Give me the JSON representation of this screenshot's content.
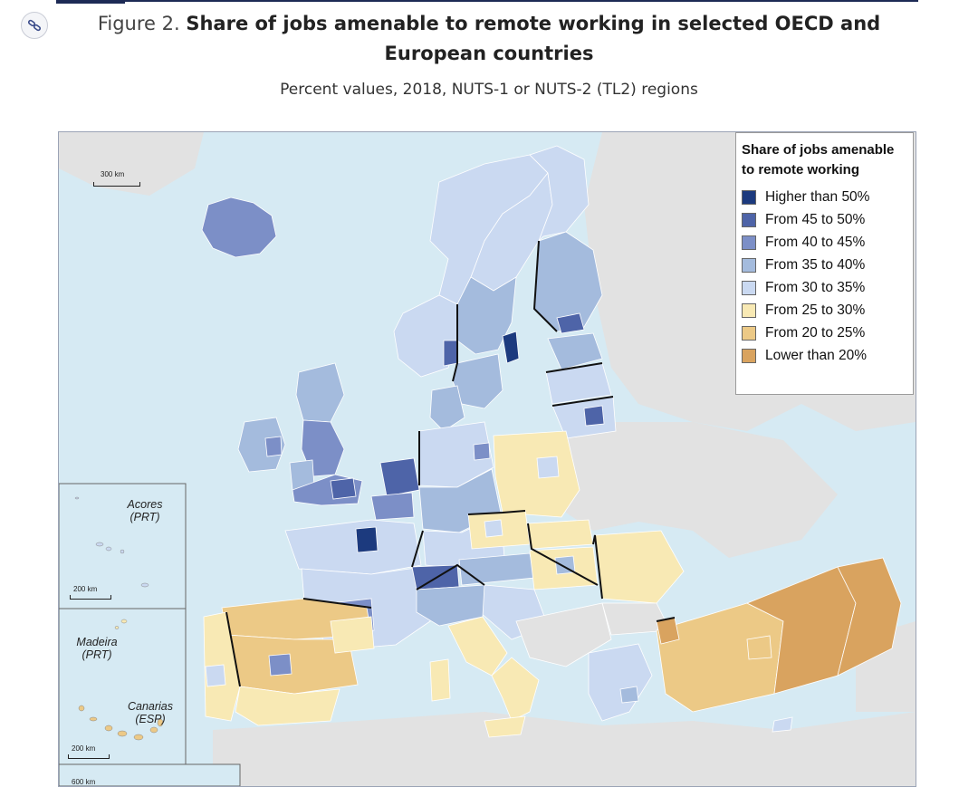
{
  "figure": {
    "title_lead": "Figure 2.",
    "title_main": "Share of jobs amenable to remote working in selected OECD and European countries",
    "subtitle": "Percent values, 2018, NUTS-1 or NUTS-2 (TL2) regions"
  },
  "icons": {
    "link": "link-icon"
  },
  "colors": {
    "sea": "#d6eaf3",
    "nodata_land": "#e2e2e2",
    "higher_50": "#1c3a7e",
    "c45_50": "#4e64a8",
    "c40_45": "#7c8fc7",
    "c35_40": "#a4bbdd",
    "c30_35": "#cad9f1",
    "c25_30": "#f8e9b4",
    "c20_25": "#ecc986",
    "lower_20": "#d9a35f"
  },
  "legend": {
    "title": "Share of jobs amenable to remote working",
    "items": [
      {
        "label": "Higher than 50%",
        "color": "#1c3a7e"
      },
      {
        "label": "From 45 to 50%",
        "color": "#4e64a8"
      },
      {
        "label": "From 40 to 45%",
        "color": "#7c8fc7"
      },
      {
        "label": "From 35 to 40%",
        "color": "#a4bbdd"
      },
      {
        "label": "From 30 to 35%",
        "color": "#cad9f1"
      },
      {
        "label": "From 25 to 30%",
        "color": "#f8e9b4"
      },
      {
        "label": "From 20 to 25%",
        "color": "#ecc986"
      },
      {
        "label": "Lower than 20%",
        "color": "#d9a35f"
      }
    ]
  },
  "scales": {
    "main": "300 km",
    "acores": "200 km",
    "canarias": "200 km",
    "bottom": "600 km"
  },
  "insets": {
    "acores": "Acores (PRT)",
    "madeira": "Madeira (PRT)",
    "canarias": "Canarias (ESP)"
  }
}
